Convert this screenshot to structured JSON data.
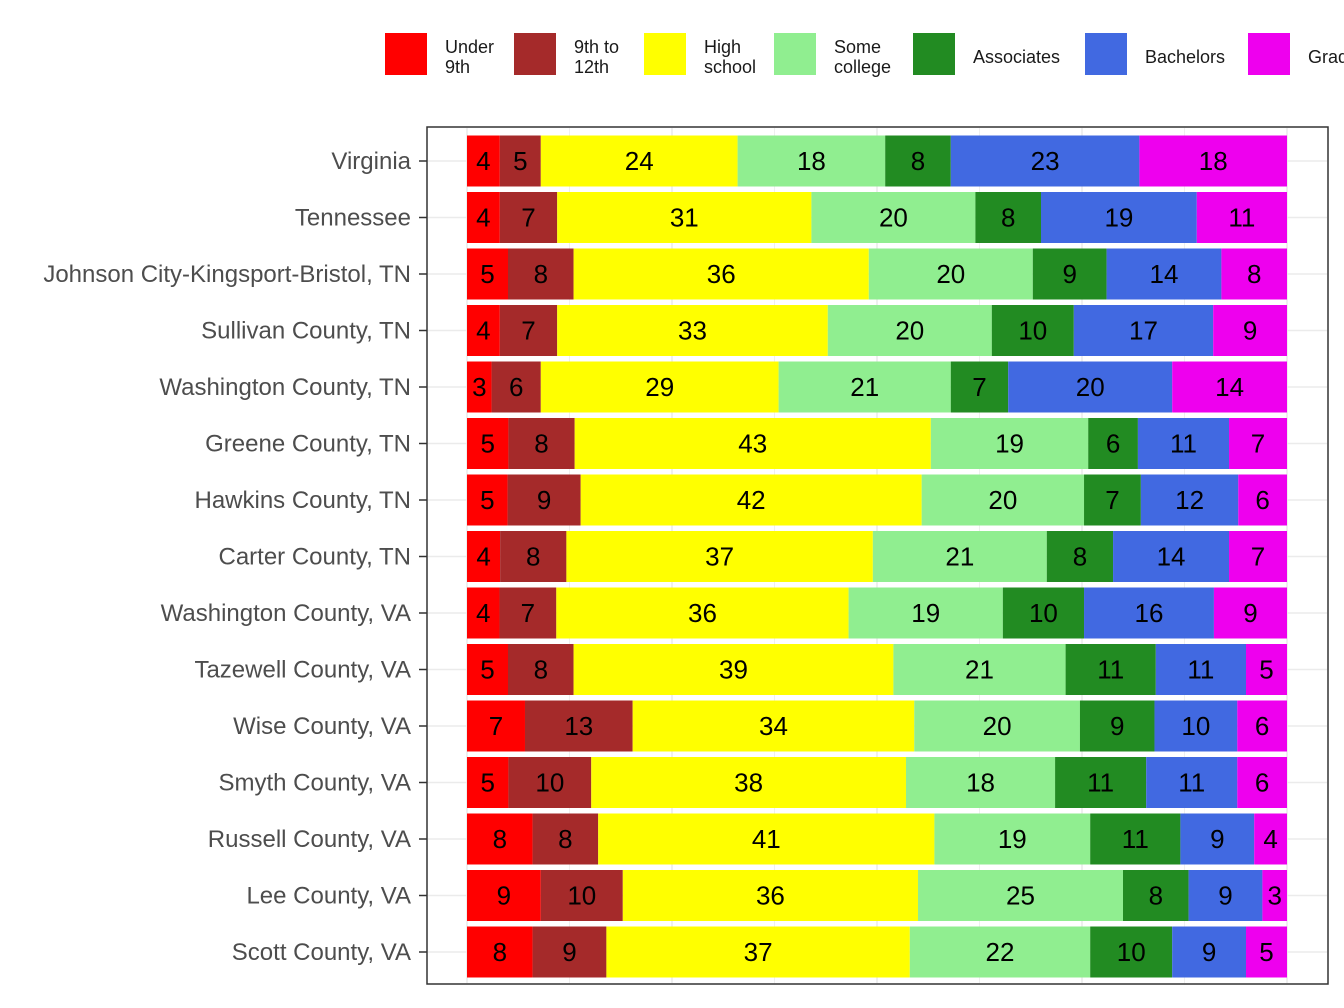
{
  "chart_data": {
    "type": "bar",
    "orientation": "horizontal",
    "stacked": true,
    "normalized": true,
    "title": "",
    "xlabel": "",
    "ylabel": "",
    "xlim": [
      0,
      100
    ],
    "grid": true,
    "legend_position": "top",
    "categories": [
      "Virginia",
      "Tennessee",
      "Johnson City-Kingsport-Bristol, TN",
      "Sullivan County, TN",
      "Washington County, TN",
      "Greene County, TN",
      "Hawkins County, TN",
      "Carter County, TN",
      "Washington County, VA",
      "Tazewell County, VA",
      "Wise County, VA",
      "Smyth County, VA",
      "Russell County, VA",
      "Lee County, VA",
      "Scott County, VA"
    ],
    "series": [
      {
        "name": "Under 9th",
        "legend_lines": [
          "Under",
          "9th"
        ],
        "color": "#ff0000",
        "values": [
          4,
          4,
          5,
          4,
          3,
          5,
          5,
          4,
          4,
          5,
          7,
          5,
          8,
          9,
          8
        ]
      },
      {
        "name": "9th to 12th",
        "legend_lines": [
          "9th to",
          "12th"
        ],
        "color": "#a52a2a",
        "values": [
          5,
          7,
          8,
          7,
          6,
          8,
          9,
          8,
          7,
          8,
          13,
          10,
          8,
          10,
          9
        ]
      },
      {
        "name": "High school",
        "legend_lines": [
          "High",
          "school"
        ],
        "color": "#ffff00",
        "values": [
          24,
          31,
          36,
          33,
          29,
          43,
          42,
          37,
          36,
          39,
          34,
          38,
          41,
          36,
          37
        ]
      },
      {
        "name": "Some college",
        "legend_lines": [
          "Some",
          "college"
        ],
        "color": "#90ee90",
        "values": [
          18,
          20,
          20,
          20,
          21,
          19,
          20,
          21,
          19,
          21,
          20,
          18,
          19,
          25,
          22
        ]
      },
      {
        "name": "Associates",
        "legend_lines": [
          "Associates"
        ],
        "color": "#228b22",
        "values": [
          8,
          8,
          9,
          10,
          7,
          6,
          7,
          8,
          10,
          11,
          9,
          11,
          11,
          8,
          10
        ]
      },
      {
        "name": "Bachelors",
        "legend_lines": [
          "Bachelors"
        ],
        "color": "#4169e1",
        "values": [
          23,
          19,
          14,
          17,
          20,
          11,
          12,
          14,
          16,
          11,
          10,
          11,
          9,
          9,
          9
        ]
      },
      {
        "name": "Graduate",
        "legend_lines": [
          "Graduate"
        ],
        "color": "#ee00ee",
        "values": [
          18,
          11,
          8,
          9,
          14,
          7,
          6,
          7,
          9,
          5,
          6,
          6,
          4,
          3,
          5
        ]
      }
    ]
  }
}
